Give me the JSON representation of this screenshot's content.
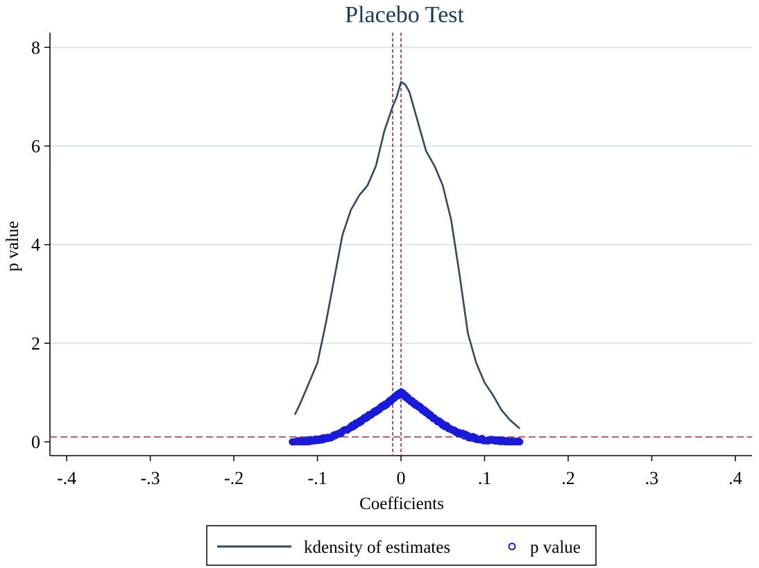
{
  "chart_data": {
    "type": "line",
    "title": "Placebo Test",
    "xlabel": "Coefficients",
    "ylabel": "p value",
    "xlim": [
      -0.42,
      0.42
    ],
    "ylim": [
      -0.28,
      8.3
    ],
    "x_ticks": [
      -0.4,
      -0.3,
      -0.2,
      -0.1,
      0,
      0.1,
      0.2,
      0.3,
      0.4
    ],
    "x_tick_labels": [
      "-.4",
      "-.3",
      "-.2",
      "-.1",
      "0",
      ".1",
      ".2",
      ".3",
      ".4"
    ],
    "y_ticks": [
      0,
      2,
      4,
      6,
      8
    ],
    "y_tick_labels": [
      "0",
      "2",
      "4",
      "6",
      "8"
    ],
    "grid": true,
    "reference_lines": {
      "vertical": [
        -0.01,
        0.0
      ],
      "horizontal": [
        0.1
      ]
    },
    "series": [
      {
        "name": "kdensity of estimates",
        "kind": "line",
        "color": "#2e4a62",
        "points": [
          [
            -0.127,
            0.55
          ],
          [
            -0.12,
            0.8
          ],
          [
            -0.11,
            1.2
          ],
          [
            -0.1,
            1.6
          ],
          [
            -0.09,
            2.4
          ],
          [
            -0.08,
            3.3
          ],
          [
            -0.07,
            4.2
          ],
          [
            -0.06,
            4.7
          ],
          [
            -0.05,
            5.0
          ],
          [
            -0.04,
            5.2
          ],
          [
            -0.03,
            5.6
          ],
          [
            -0.02,
            6.3
          ],
          [
            -0.01,
            6.8
          ],
          [
            -0.005,
            7.0
          ],
          [
            0.0,
            7.3
          ],
          [
            0.005,
            7.25
          ],
          [
            0.01,
            7.1
          ],
          [
            0.02,
            6.5
          ],
          [
            0.03,
            5.9
          ],
          [
            0.04,
            5.6
          ],
          [
            0.05,
            5.2
          ],
          [
            0.06,
            4.5
          ],
          [
            0.07,
            3.4
          ],
          [
            0.08,
            2.2
          ],
          [
            0.09,
            1.6
          ],
          [
            0.1,
            1.2
          ],
          [
            0.11,
            0.95
          ],
          [
            0.12,
            0.65
          ],
          [
            0.13,
            0.45
          ],
          [
            0.142,
            0.27
          ]
        ]
      },
      {
        "name": "p value",
        "kind": "scatter",
        "color": "#1a1adc",
        "envelope": [
          [
            -0.13,
            0.0
          ],
          [
            -0.12,
            0.01
          ],
          [
            -0.11,
            0.02
          ],
          [
            -0.1,
            0.04
          ],
          [
            -0.09,
            0.07
          ],
          [
            -0.08,
            0.12
          ],
          [
            -0.07,
            0.2
          ],
          [
            -0.06,
            0.3
          ],
          [
            -0.05,
            0.4
          ],
          [
            -0.04,
            0.52
          ],
          [
            -0.03,
            0.63
          ],
          [
            -0.02,
            0.74
          ],
          [
            -0.01,
            0.86
          ],
          [
            0.0,
            1.0
          ],
          [
            0.01,
            0.86
          ],
          [
            0.02,
            0.73
          ],
          [
            0.03,
            0.6
          ],
          [
            0.04,
            0.47
          ],
          [
            0.05,
            0.35
          ],
          [
            0.06,
            0.26
          ],
          [
            0.07,
            0.18
          ],
          [
            0.08,
            0.11
          ],
          [
            0.09,
            0.07
          ],
          [
            0.1,
            0.04
          ],
          [
            0.11,
            0.03
          ],
          [
            0.12,
            0.02
          ],
          [
            0.13,
            0.01
          ],
          [
            0.142,
            0.0
          ]
        ]
      }
    ],
    "legend": {
      "position": "bottom",
      "items": [
        "kdensity of estimates",
        "p value"
      ]
    },
    "colors": {
      "title": "#1c3a5e",
      "grid": "#e0eaee",
      "reference": "#b0485a",
      "density": "#2e4a62",
      "points": "#1a1adc"
    }
  }
}
